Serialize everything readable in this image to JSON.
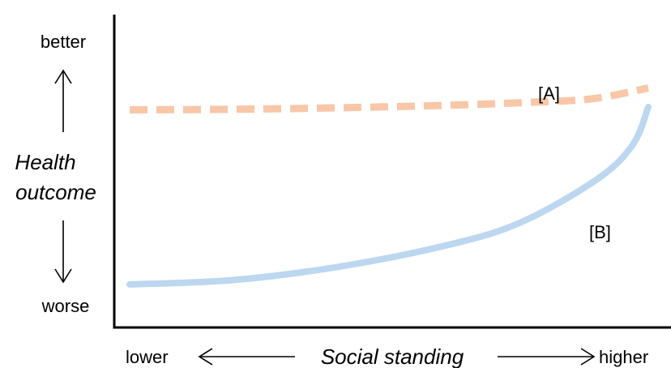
{
  "chart_data": {
    "type": "line",
    "title": "",
    "xlabel": "Social standing",
    "ylabel_line1": "Health",
    "ylabel_line2": "outcome",
    "x_low_label": "lower",
    "x_high_label": "higher",
    "y_high_label": "better",
    "y_low_label": "worse",
    "xlim": [
      0,
      1
    ],
    "ylim": [
      0,
      1
    ],
    "grid": false,
    "series": [
      {
        "name": "[A]",
        "style": "dashed",
        "color": "#f8c7a8",
        "x": [
          0.0,
          0.2,
          0.4,
          0.6,
          0.8,
          0.9,
          1.0
        ],
        "y": [
          0.72,
          0.722,
          0.727,
          0.735,
          0.748,
          0.76,
          0.795
        ]
      },
      {
        "name": "[B]",
        "style": "solid",
        "color": "#bcd7ef",
        "x": [
          0.0,
          0.2,
          0.4,
          0.6,
          0.75,
          0.9,
          0.97,
          1.0
        ],
        "y": [
          0.12,
          0.135,
          0.18,
          0.25,
          0.33,
          0.48,
          0.6,
          0.73
        ]
      }
    ]
  }
}
